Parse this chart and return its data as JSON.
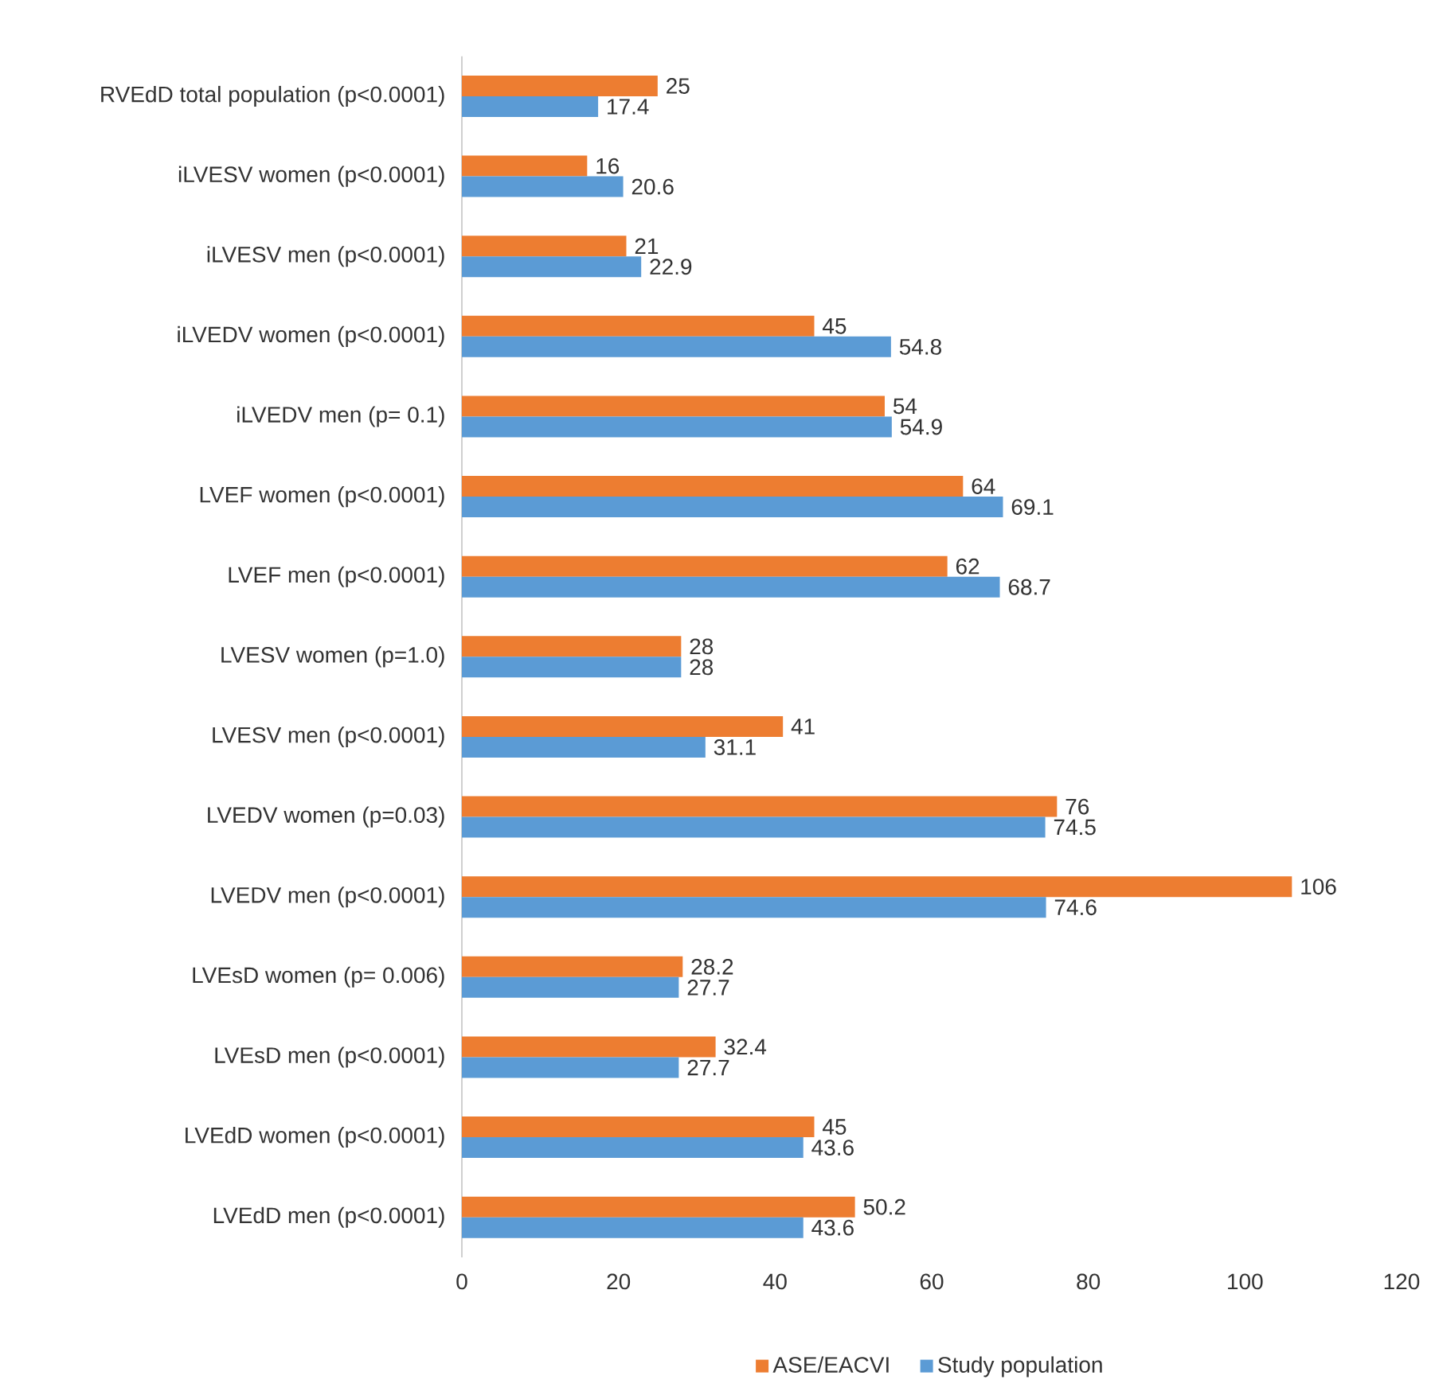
{
  "chart_data": {
    "type": "bar",
    "orientation": "horizontal",
    "categories": [
      "RVEdD total population (p<0.0001)",
      "iLVESV women (p<0.0001)",
      "iLVESV men (p<0.0001)",
      "iLVEDV women (p<0.0001)",
      "iLVEDV men (p= 0.1)",
      "LVEF women (p<0.0001)",
      "LVEF men (p<0.0001)",
      "LVESV women (p=1.0)",
      "LVESV men (p<0.0001)",
      "LVEDV women (p=0.03)",
      "LVEDV men (p<0.0001)",
      "LVEsD women (p= 0.006)",
      "LVEsD men (p<0.0001)",
      "LVEdD women (p<0.0001)",
      "LVEdD men (p<0.0001)"
    ],
    "series": [
      {
        "name": "ASE/EACVI",
        "color": "#ed7d31",
        "values": [
          25,
          16,
          21,
          45,
          54,
          64,
          62,
          28,
          41,
          76,
          106,
          28.2,
          32.4,
          45,
          50.2
        ]
      },
      {
        "name": "Study population",
        "color": "#5b9bd5",
        "values": [
          17.4,
          20.6,
          22.9,
          54.8,
          54.9,
          69.1,
          68.7,
          28,
          31.1,
          74.5,
          74.6,
          27.7,
          27.7,
          43.6,
          43.6
        ]
      }
    ],
    "xlim": [
      0,
      120
    ],
    "xticks": [
      0,
      20,
      40,
      60,
      80,
      100,
      120
    ],
    "data_labels": true,
    "legend": "bottom"
  }
}
